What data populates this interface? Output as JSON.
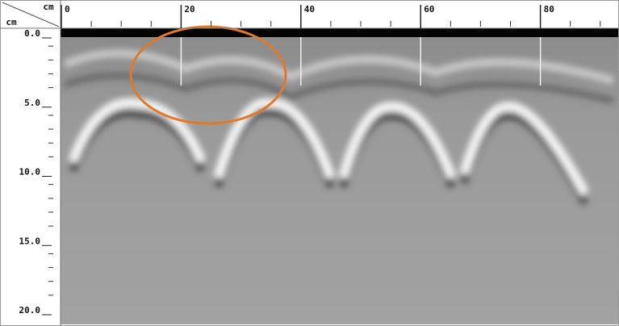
{
  "top_axis": {
    "unit": "cm",
    "ticks": [
      0,
      20,
      40,
      60,
      80
    ]
  },
  "left_axis": {
    "unit": "cm",
    "ticks": [
      {
        "value": 0,
        "label": "0.0"
      },
      {
        "value": 5,
        "label": "5.0"
      },
      {
        "value": 10,
        "label": "10.0"
      },
      {
        "value": 15,
        "label": "15.0"
      },
      {
        "value": 20,
        "label": "20.0"
      }
    ]
  }
}
